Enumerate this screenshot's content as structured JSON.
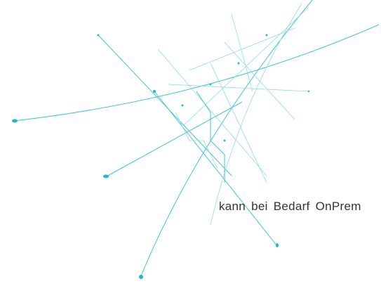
{
  "caption": "kann bei Bedarf OnPrem"
}
